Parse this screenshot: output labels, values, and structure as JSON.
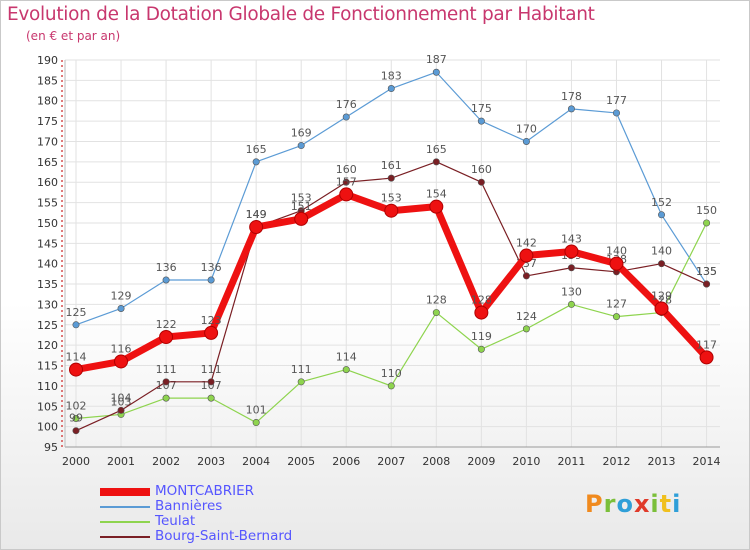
{
  "title": "Evolution de la Dotation Globale de Fonctionnement par Habitant",
  "subtitle": "(en € et par an)",
  "logo": {
    "letters": [
      "P",
      "r",
      "o",
      "x",
      "i",
      "t",
      "i"
    ],
    "colors": [
      "#f08a1e",
      "#7bbf3a",
      "#2f9fd8",
      "#e03a2a",
      "#7bbf3a",
      "#f0c01e",
      "#2f9fd8"
    ]
  },
  "chart_data": {
    "type": "line",
    "x": [
      "2000",
      "2001",
      "2002",
      "2003",
      "2004",
      "2005",
      "2006",
      "2007",
      "2008",
      "2009",
      "2010",
      "2011",
      "2012",
      "2013",
      "2014"
    ],
    "ylim": [
      95,
      190
    ],
    "yticks": [
      95,
      100,
      105,
      110,
      115,
      120,
      125,
      130,
      135,
      140,
      145,
      150,
      155,
      160,
      165,
      170,
      175,
      180,
      185,
      190
    ],
    "grid": true,
    "legend_position": "bottom-left",
    "series": [
      {
        "name": "Bannières",
        "color": "#5b9bd5",
        "values": [
          125,
          129,
          136,
          136,
          165,
          169,
          176,
          183,
          187,
          175,
          170,
          178,
          177,
          152,
          135
        ]
      },
      {
        "name": "Teulat",
        "color": "#8ed44e",
        "values": [
          102,
          103,
          107,
          107,
          101,
          111,
          114,
          110,
          128,
          119,
          124,
          130,
          127,
          128,
          150
        ]
      },
      {
        "name": "Bourg-Saint-Bernard",
        "color": "#7a1f24",
        "values": [
          99,
          104,
          111,
          111,
          149,
          153,
          160,
          161,
          165,
          160,
          137,
          139,
          138,
          140,
          135
        ]
      },
      {
        "name": "MONTCABRIER",
        "color": "#ee1111",
        "values": [
          114,
          116,
          122,
          123,
          149,
          151,
          157,
          153,
          154,
          128,
          142,
          143,
          140,
          129,
          117
        ]
      }
    ]
  }
}
